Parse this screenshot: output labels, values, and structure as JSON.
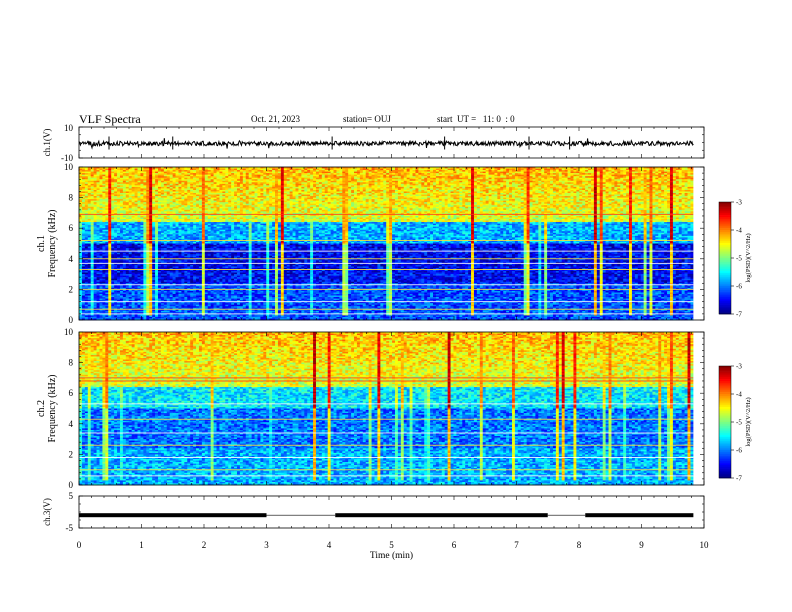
{
  "header": {
    "title": "VLF Spectra",
    "date": "Oct. 21, 2023",
    "station": "station= OUJ",
    "start": "start  UT =   11: 0  : 0"
  },
  "chart_data": [
    {
      "type": "line",
      "panel": "ch1-waveform",
      "ylabel": "ch.1(V)",
      "ylim": [
        -10,
        10
      ],
      "yticks": [
        "10",
        "-10"
      ],
      "xlim": [
        0,
        10
      ],
      "approx_level": 0,
      "approx_amplitude": 1.5
    },
    {
      "type": "heatmap",
      "panel": "ch1-spectrogram",
      "ylabel_line1": "ch.1",
      "ylabel_line2": "Frequency (kHz)",
      "ylim": [
        0,
        10
      ],
      "yticks": [
        "0",
        "2",
        "4",
        "6",
        "8",
        "10"
      ],
      "xlim": [
        0,
        10
      ],
      "data_xmax": 9.83,
      "colorbar": {
        "label": "log(PSD)(V^2/Hz)",
        "ticks": [
          "-3",
          "-4",
          "-5",
          "-6",
          "-7"
        ],
        "range": [
          -7,
          -3
        ]
      },
      "persistent_lines_khz": [
        0.4,
        0.7,
        1.2,
        2.0,
        2.3,
        3.3,
        3.7,
        4.0,
        4.5,
        5.2,
        6.9
      ]
    },
    {
      "type": "heatmap",
      "panel": "ch2-spectrogram",
      "ylabel_line1": "ch.2",
      "ylabel_line2": "Frequency (kHz)",
      "ylim": [
        0,
        10
      ],
      "yticks": [
        "0",
        "2",
        "4",
        "6",
        "8",
        "10"
      ],
      "xlim": [
        0,
        10
      ],
      "data_xmax": 9.83,
      "colorbar": {
        "label": "log(PSD)(V^2/Hz)",
        "ticks": [
          "-3",
          "-4",
          "-5",
          "-6",
          "-7"
        ],
        "range": [
          -7,
          -3
        ]
      },
      "persistent_lines_khz": [
        0.6,
        1.0,
        1.8,
        2.6,
        3.4,
        4.3,
        5.3,
        6.8,
        7.0
      ]
    },
    {
      "type": "line",
      "panel": "ch3-signal",
      "ylabel": "ch.3(V)",
      "ylim": [
        -5,
        5
      ],
      "yticks": [
        "5",
        "-5"
      ],
      "xlim": [
        0,
        10
      ],
      "xlabel": "Time (min)",
      "xticks": [
        "0",
        "1",
        "2",
        "3",
        "4",
        "5",
        "6",
        "7",
        "8",
        "9",
        "10"
      ],
      "level_v": -1.0,
      "gaps_min": [
        [
          3.0,
          4.1
        ],
        [
          7.5,
          8.1
        ]
      ]
    }
  ]
}
